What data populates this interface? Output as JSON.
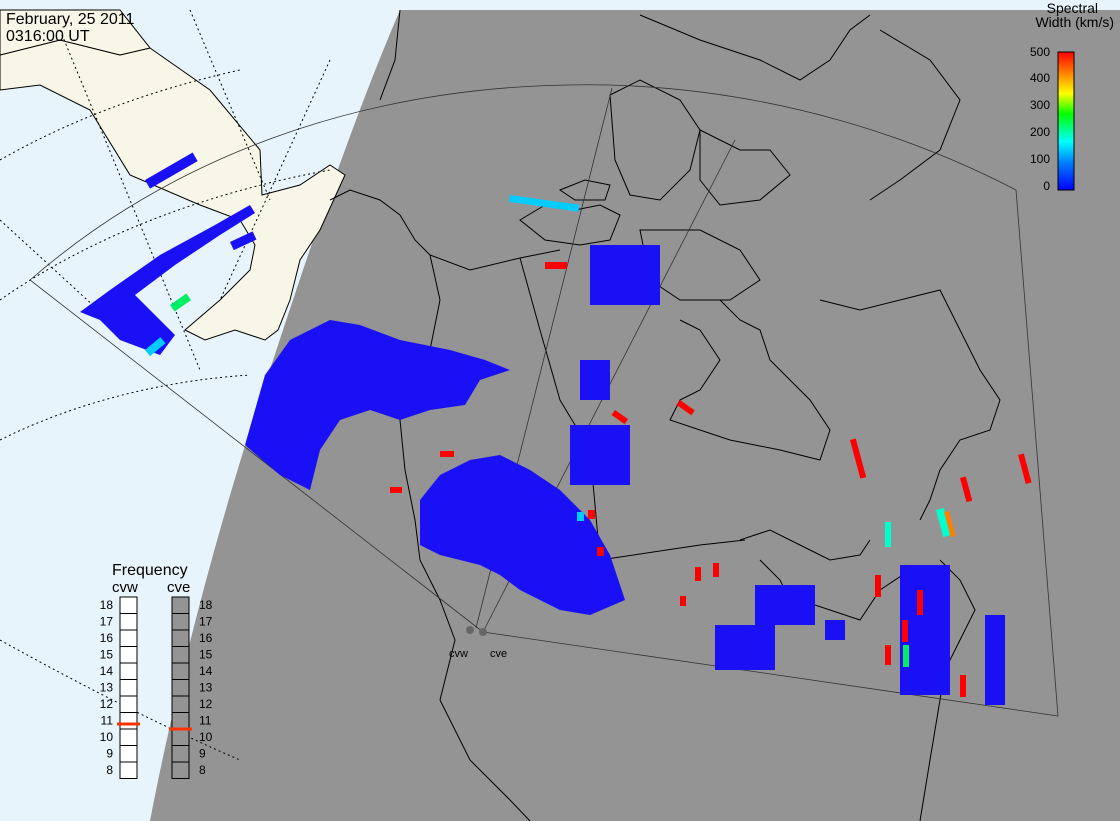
{
  "header": {
    "date": "February, 25 2011",
    "time": "0316:00 UT"
  },
  "colorbar": {
    "title_line1": "Spectral",
    "title_line2": "Width (km/s)",
    "ticks": [
      "500",
      "400",
      "300",
      "200",
      "100",
      "0"
    ],
    "colors": [
      "#ff0000",
      "#ff8000",
      "#ffff00",
      "#00ff00",
      "#00ffff",
      "#0000ff"
    ]
  },
  "radars": {
    "cvw_label": "cvw",
    "cve_label": "cve"
  },
  "frequency": {
    "title": "Frequency",
    "cvw_label": "cvw",
    "cve_label": "cve",
    "scale": [
      "18",
      "17",
      "16",
      "15",
      "14",
      "13",
      "12",
      "11",
      "10",
      "9",
      "8"
    ],
    "cvw_value": 10.8,
    "cve_value": 10.5,
    "marker_color": "#ff3300"
  },
  "colors": {
    "night": "#949494",
    "day_ocean": "#e8f4fb",
    "day_land": "#f8f6e6",
    "scatter_low": "#1a10f5"
  }
}
